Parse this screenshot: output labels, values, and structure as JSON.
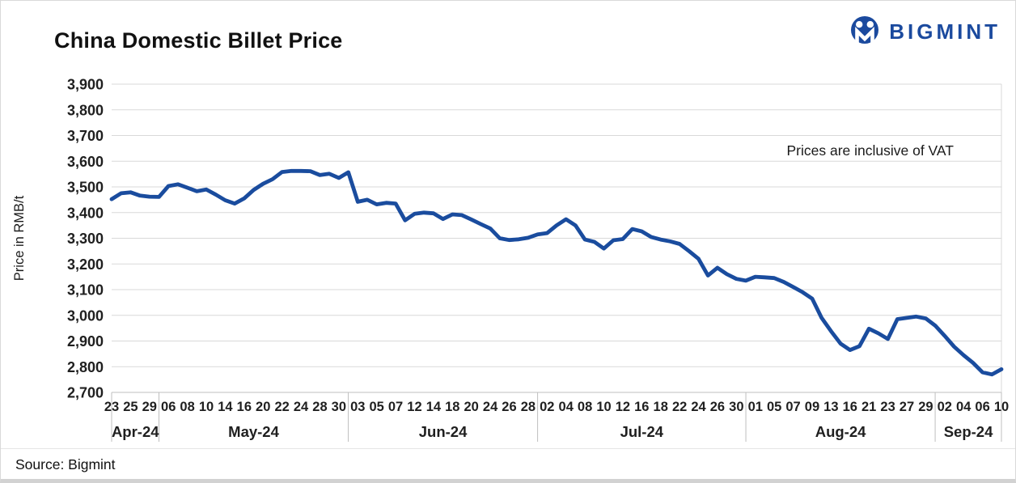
{
  "header": {
    "title": "China Domestic Billet Price",
    "logo_text": "BIGMINT"
  },
  "annotation": "Prices are inclusive of VAT",
  "footer": {
    "source": "Source: Bigmint"
  },
  "colors": {
    "brand_blue": "#1b4a9e",
    "line_blue": "#1a4c9e",
    "gridline": "#d9d9d9",
    "axis_line": "#bfbfbf"
  },
  "chart_data": {
    "type": "line",
    "title": "China Domestic Billet Price",
    "ylabel": "Price in RMB/t",
    "ylim": [
      2700,
      3900
    ],
    "ytick_step": 100,
    "grid": "horizontal",
    "legend": "none",
    "note": "Prices are inclusive of VAT",
    "line_color": "#1a4c9e",
    "months": [
      {
        "label": "Apr-24",
        "ticks": [
          "23",
          "25",
          "29"
        ]
      },
      {
        "label": "May-24",
        "ticks": [
          "06",
          "08",
          "10",
          "14",
          "16",
          "20",
          "22",
          "24",
          "28",
          "30"
        ]
      },
      {
        "label": "Jun-24",
        "ticks": [
          "03",
          "05",
          "07",
          "12",
          "14",
          "18",
          "20",
          "24",
          "26",
          "28"
        ]
      },
      {
        "label": "Jul-24",
        "ticks": [
          "02",
          "04",
          "08",
          "10",
          "12",
          "16",
          "18",
          "22",
          "24",
          "26",
          "30"
        ]
      },
      {
        "label": "Aug-24",
        "ticks": [
          "01",
          "05",
          "07",
          "09",
          "13",
          "16",
          "21",
          "23",
          "27",
          "29"
        ]
      },
      {
        "label": "Sep-24",
        "ticks": [
          "02",
          "04",
          "06",
          "10"
        ]
      }
    ],
    "label_every": 2,
    "values": [
      3452,
      3475,
      3479,
      3466,
      3462,
      3461,
      3503,
      3510,
      3497,
      3483,
      3490,
      3470,
      3448,
      3435,
      3455,
      3488,
      3512,
      3530,
      3558,
      3562,
      3562,
      3561,
      3546,
      3551,
      3535,
      3557,
      3442,
      3450,
      3432,
      3438,
      3435,
      3370,
      3395,
      3400,
      3397,
      3375,
      3393,
      3390,
      3373,
      3355,
      3338,
      3300,
      3293,
      3296,
      3302,
      3315,
      3320,
      3350,
      3374,
      3350,
      3295,
      3286,
      3260,
      3292,
      3297,
      3336,
      3327,
      3305,
      3295,
      3288,
      3278,
      3250,
      3220,
      3155,
      3185,
      3160,
      3142,
      3135,
      3150,
      3148,
      3145,
      3130,
      3110,
      3090,
      3065,
      2990,
      2938,
      2890,
      2865,
      2880,
      2948,
      2930,
      2908,
      2985,
      2990,
      2995,
      2988,
      2960,
      2920,
      2878,
      2845,
      2815,
      2778,
      2770,
      2790
    ]
  }
}
